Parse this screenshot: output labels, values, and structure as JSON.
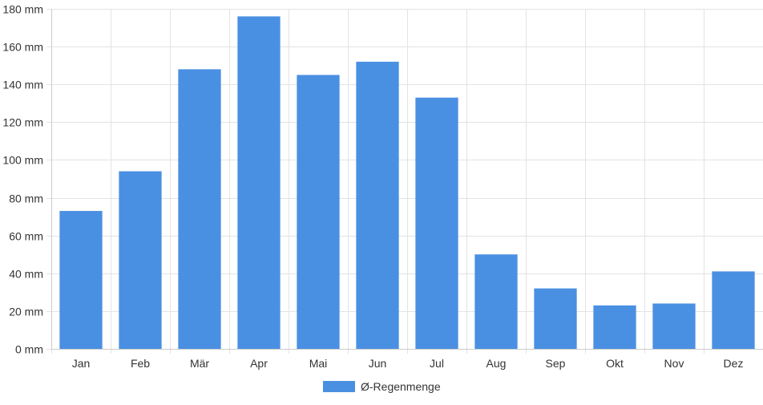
{
  "colors": {
    "bar": "#4a90e2",
    "grid": "#e3e3e3",
    "axis": "#cccccc",
    "text": "#333333"
  },
  "chart_data": {
    "type": "bar",
    "categories": [
      "Jan",
      "Feb",
      "Mär",
      "Apr",
      "Mai",
      "Jun",
      "Jul",
      "Aug",
      "Sep",
      "Okt",
      "Nov",
      "Dez"
    ],
    "series": [
      {
        "name": "Ø-Regenmenge",
        "values": [
          73,
          94,
          148,
          176,
          145,
          152,
          133,
          50,
          32,
          23,
          24,
          41
        ]
      }
    ],
    "ylim": [
      0,
      180
    ],
    "yticks": [
      0,
      20,
      40,
      60,
      80,
      100,
      120,
      140,
      160,
      180
    ],
    "ytick_suffix": " mm",
    "grid": true,
    "legend_position": "bottom"
  }
}
